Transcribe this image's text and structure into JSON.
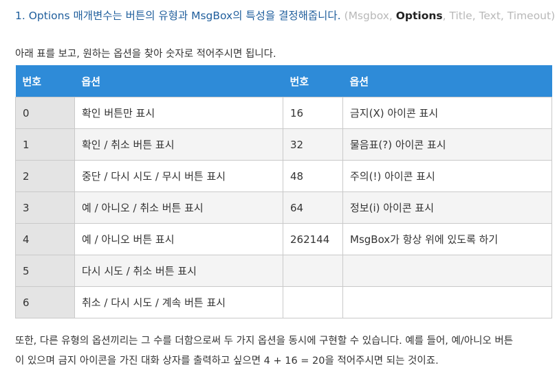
{
  "heading": {
    "main": "1. Options 매개변수는 버튼의 유형과 MsgBox의 특성을 결정해줍니다.",
    "params_open": "(Msgbox, ",
    "params_bold": "Options",
    "params_close": ", Title, Text, Timeout)"
  },
  "intro": "아래 표를 보고, 원하는 옵션을 찾아 숫자로 적어주시면 됩니다.",
  "table": {
    "headers": [
      "번호",
      "옵션",
      "번호",
      "옵션"
    ],
    "rows": [
      [
        "0",
        "확인 버튼만 표시",
        "16",
        "금지(X) 아이콘 표시"
      ],
      [
        "1",
        "확인 / 취소 버튼 표시",
        "32",
        "물음표(?) 아이콘 표시"
      ],
      [
        "2",
        "중단 / 다시 시도 / 무시 버튼 표시",
        "48",
        "주의(!) 아이콘 표시"
      ],
      [
        "3",
        "예 / 아니오 / 취소 버튼 표시",
        "64",
        "정보(i) 아이콘 표시"
      ],
      [
        "4",
        "예 / 아니오 버튼 표시",
        "262144",
        "MsgBox가 항상 위에 있도록 하기"
      ],
      [
        "5",
        "다시 시도 / 취소 버튼 표시",
        "",
        ""
      ],
      [
        "6",
        "취소 / 다시 시도 / 계속 버튼 표시",
        "",
        ""
      ]
    ]
  },
  "outro": {
    "line1": "또한, 다른 유형의 옵션끼리는 그 수를 더함으로써 두 가지 옵션을 동시에 구현할 수 있습니다. 예를 들어, 예/아니오 버튼",
    "line2": "이 있으며 금지 아이콘을 가진 대화 상자를 출력하고 싶으면 4 + 16 = 20을 적어주시면 되는 것이죠."
  },
  "colors": {
    "header_bg": "#2e8bd8",
    "heading_text": "#1f5e9c",
    "param_gray": "#b8b8b8"
  }
}
